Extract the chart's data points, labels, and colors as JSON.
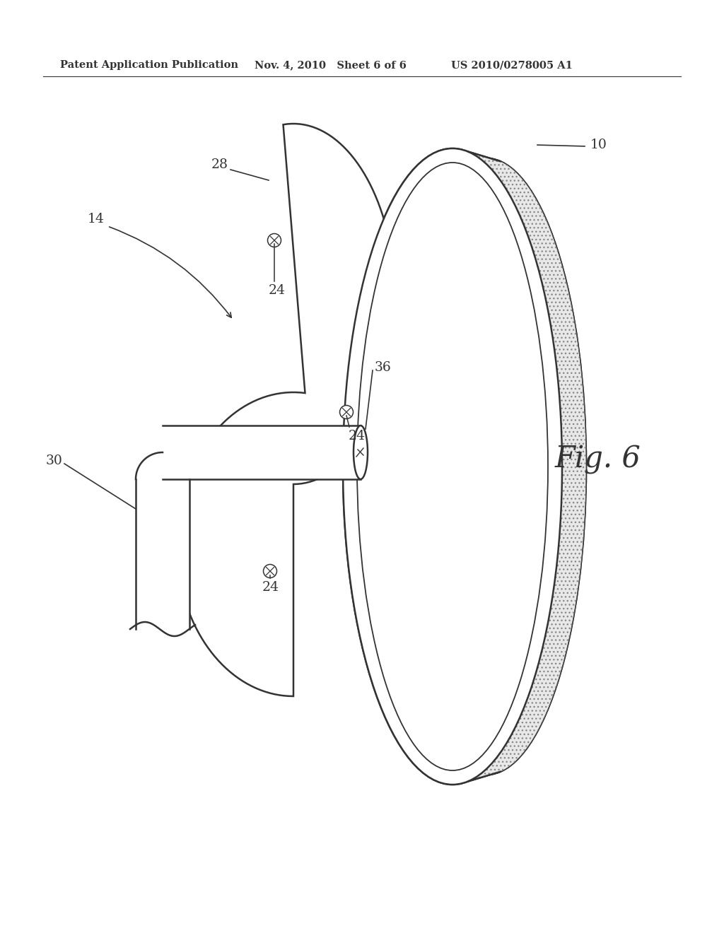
{
  "header_left": "Patent Application Publication",
  "header_mid": "Nov. 4, 2010   Sheet 6 of 6",
  "header_right": "US 2010/0278005 A1",
  "fig_label": "Fig. 6",
  "bg_color": "#ffffff",
  "line_color": "#333333",
  "notes": {
    "disk_is_tall_vertical_ellipse_on_right": true,
    "plate_is_oval_teardrop_on_left": true,
    "pipe_is_Lshaped_horizontal_then_down_on_left": true
  }
}
